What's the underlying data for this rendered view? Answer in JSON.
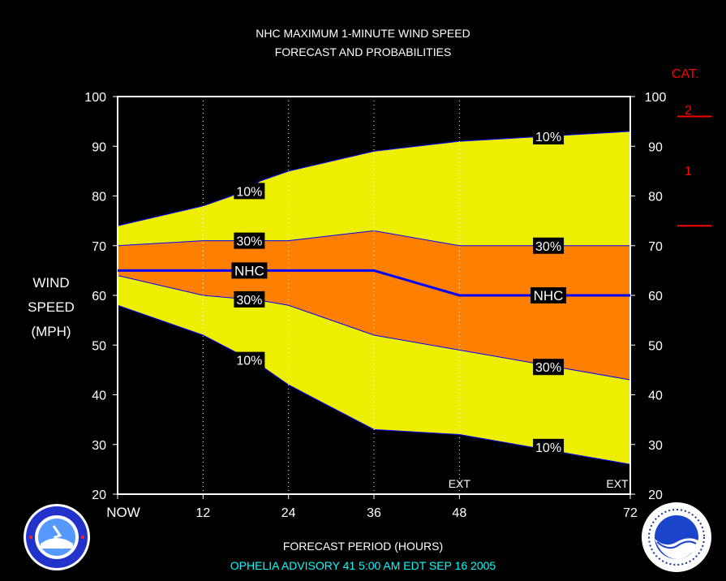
{
  "title_line1": "NHC MAXIMUM 1-MINUTE WIND SPEED",
  "title_line2": "FORECAST AND PROBABILITIES",
  "y_label": [
    "WIND",
    "SPEED",
    "(MPH)"
  ],
  "x_label": "FORECAST PERIOD (HOURS)",
  "advisory": "OPHELIA   ADVISORY  41 5:00 AM EDT SEP 16 2005",
  "category": {
    "title": "CAT.",
    "labels": [
      "2",
      "1"
    ],
    "color": "#ff0000"
  },
  "colors": {
    "outer_band": "#eeee00",
    "inner_band": "#ff8000",
    "line": "#0000ff",
    "grid": "#ffffff"
  },
  "chart_data": {
    "type": "area",
    "x": [
      0,
      12,
      24,
      36,
      48,
      72
    ],
    "x_ticks": [
      "NOW",
      "12",
      "24",
      "36",
      "48",
      "72"
    ],
    "xlim": [
      0,
      72
    ],
    "ylim": [
      20,
      100
    ],
    "y_ticks": [
      20,
      30,
      40,
      50,
      60,
      70,
      80,
      90,
      100
    ],
    "ext_labels": [
      {
        "x": 48,
        "text": "EXT"
      },
      {
        "x": 72,
        "text": "EXT"
      }
    ],
    "series": [
      {
        "name": "10%",
        "band": "upper",
        "points": [
          [
            0,
            74
          ],
          [
            12,
            78
          ],
          [
            16,
            80
          ],
          [
            20,
            83
          ],
          [
            24,
            85
          ],
          [
            36,
            89
          ],
          [
            48,
            91
          ],
          [
            60,
            92
          ],
          [
            72,
            93
          ]
        ]
      },
      {
        "name": "30%",
        "band": "upper",
        "points": [
          [
            0,
            70
          ],
          [
            12,
            71
          ],
          [
            24,
            71
          ],
          [
            36,
            73
          ],
          [
            48,
            70
          ],
          [
            72,
            70
          ]
        ]
      },
      {
        "name": "NHC",
        "points": [
          [
            0,
            65
          ],
          [
            12,
            65
          ],
          [
            24,
            65
          ],
          [
            36,
            65
          ],
          [
            48,
            60
          ],
          [
            72,
            60
          ]
        ]
      },
      {
        "name": "30%",
        "band": "lower",
        "points": [
          [
            0,
            64
          ],
          [
            12,
            60
          ],
          [
            20,
            59
          ],
          [
            24,
            58
          ],
          [
            36,
            52
          ],
          [
            48,
            49
          ],
          [
            72,
            43
          ]
        ]
      },
      {
        "name": "10%",
        "band": "lower",
        "points": [
          [
            0,
            58
          ],
          [
            12,
            52
          ],
          [
            16,
            49
          ],
          [
            20,
            46
          ],
          [
            24,
            42
          ],
          [
            36,
            33
          ],
          [
            48,
            32
          ],
          [
            72,
            26
          ]
        ]
      }
    ],
    "series_labels": [
      {
        "text": "10%",
        "x": 18.5,
        "y": 81
      },
      {
        "text": "30%",
        "x": 18.5,
        "y": 71
      },
      {
        "text": "NHC",
        "x": 18.5,
        "y": 65
      },
      {
        "text": "30%",
        "x": 18.5,
        "y": 59.2
      },
      {
        "text": "10%",
        "x": 18.5,
        "y": 47
      },
      {
        "text": "10%",
        "x": 60.5,
        "y": 92
      },
      {
        "text": "30%",
        "x": 60.5,
        "y": 70
      },
      {
        "text": "NHC",
        "x": 60.5,
        "y": 60
      },
      {
        "text": "30%",
        "x": 60.5,
        "y": 45.6
      },
      {
        "text": "10%",
        "x": 60.5,
        "y": 29.5
      }
    ]
  }
}
